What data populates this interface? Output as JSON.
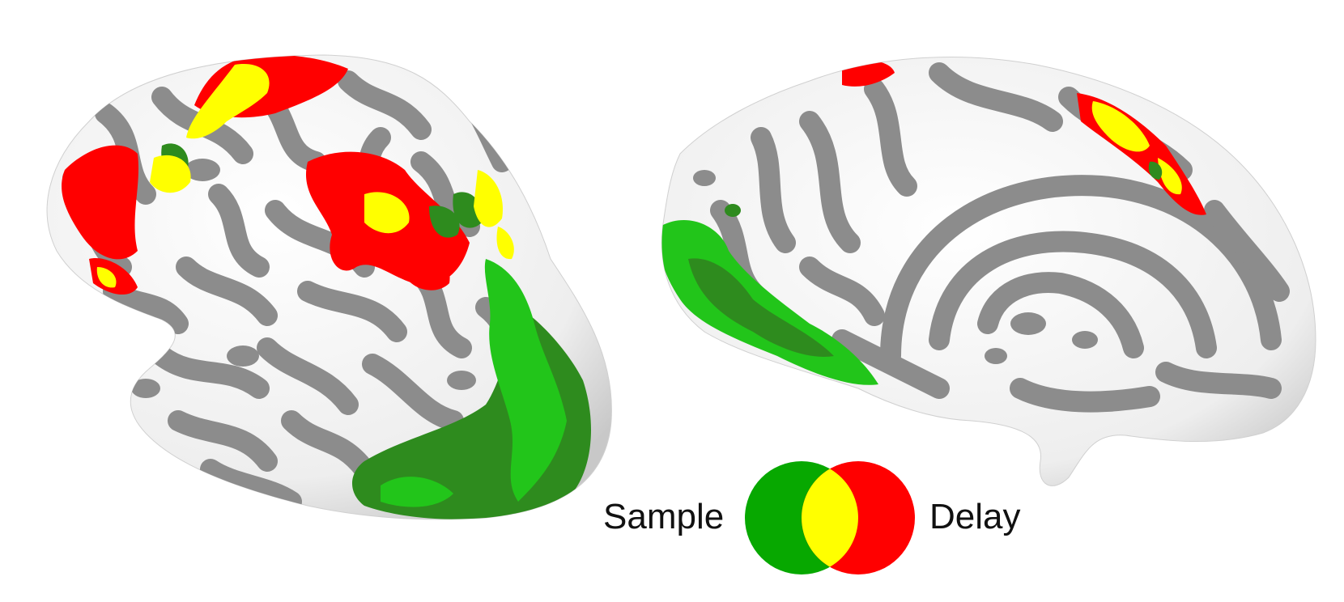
{
  "legend": {
    "sample_label": "Sample",
    "delay_label": "Delay",
    "sample_color": "#07a800",
    "delay_color": "#ff0000",
    "overlap_color": "#ffff00"
  },
  "surface": {
    "sulcus_color": "#8c8c8c",
    "gyrus_color": "#f2f2f2",
    "sample_dark_green": "#2e8b1e",
    "sample_light_green": "#22c51a"
  },
  "views": [
    "lateral-inflated-hemisphere",
    "medial-inflated-hemisphere"
  ]
}
